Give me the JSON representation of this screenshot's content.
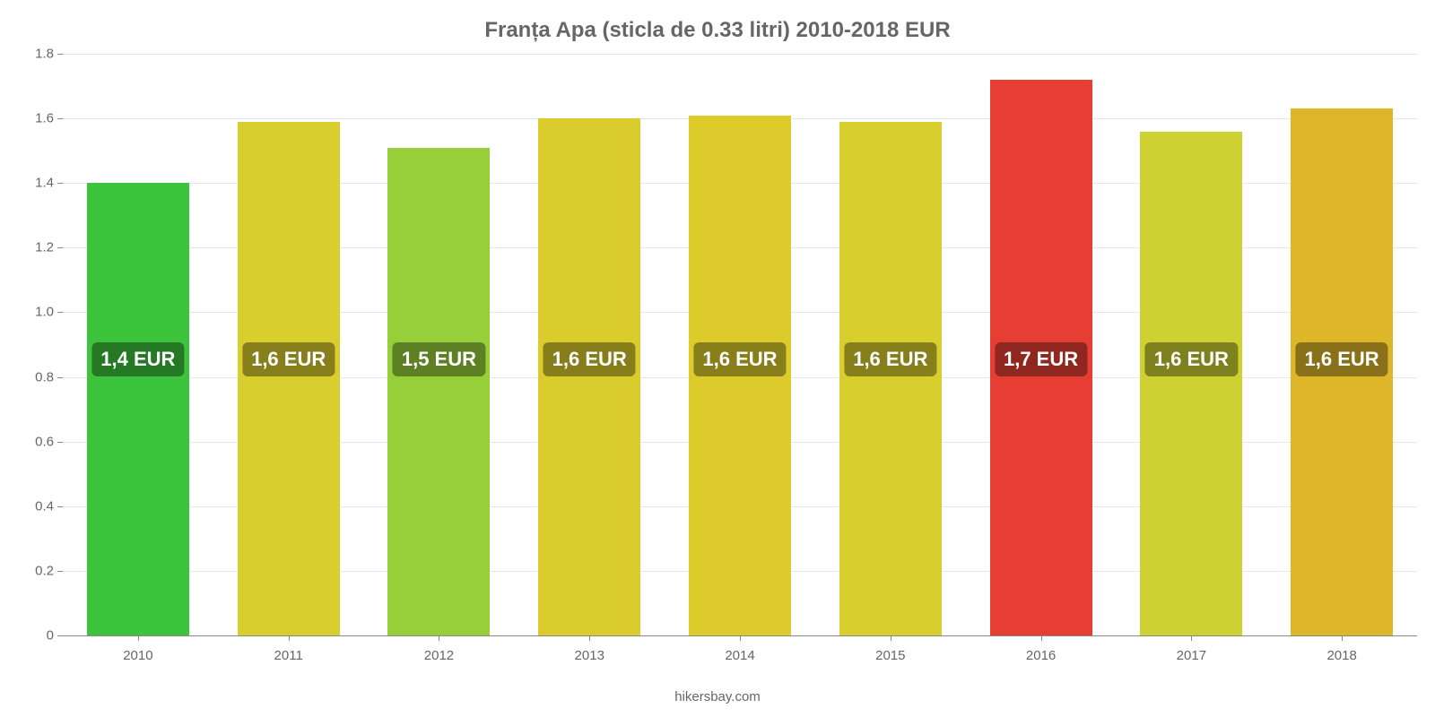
{
  "chart": {
    "type": "bar",
    "title": "Franța Apa (sticla de 0.33 litri) 2010-2018 EUR",
    "title_fontsize": 24,
    "title_color": "#666666",
    "attribution": "hikersbay.com",
    "background_color": "#ffffff",
    "grid_color": "#e6e6e6",
    "axis_color": "#888888",
    "tick_font_color": "#666666",
    "tick_fontsize": 15,
    "y_axis": {
      "min": 0,
      "max": 1.8,
      "ticks": [
        0,
        0.2,
        0.4,
        0.6,
        0.8,
        1.0,
        1.2,
        1.4,
        1.6,
        1.8
      ],
      "tick_labels": [
        "0",
        "0.2",
        "0.4",
        "0.6",
        "0.8",
        "1.0",
        "1.2",
        "1.4",
        "1.6",
        "1.8"
      ]
    },
    "bar_width_pct": 68,
    "bar_label_fontsize": 22,
    "bar_label_color": "#ffffff",
    "bar_label_bg": "rgba(0,0,0,0.38)",
    "bar_label_center_value": 0.85,
    "bars": [
      {
        "category": "2010",
        "value": 1.4,
        "label": "1,4 EUR",
        "color": "#3cc43c"
      },
      {
        "category": "2011",
        "value": 1.59,
        "label": "1,6 EUR",
        "color": "#d8ce2e"
      },
      {
        "category": "2012",
        "value": 1.51,
        "label": "1,5 EUR",
        "color": "#96cf3a"
      },
      {
        "category": "2013",
        "value": 1.6,
        "label": "1,6 EUR",
        "color": "#dacc2d"
      },
      {
        "category": "2014",
        "value": 1.61,
        "label": "1,6 EUR",
        "color": "#dccb2b"
      },
      {
        "category": "2015",
        "value": 1.59,
        "label": "1,6 EUR",
        "color": "#d8ce2e"
      },
      {
        "category": "2016",
        "value": 1.72,
        "label": "1,7 EUR",
        "color": "#e73e34"
      },
      {
        "category": "2017",
        "value": 1.56,
        "label": "1,6 EUR",
        "color": "#cdd131"
      },
      {
        "category": "2018",
        "value": 1.63,
        "label": "1,6 EUR",
        "color": "#deb62a"
      }
    ]
  }
}
